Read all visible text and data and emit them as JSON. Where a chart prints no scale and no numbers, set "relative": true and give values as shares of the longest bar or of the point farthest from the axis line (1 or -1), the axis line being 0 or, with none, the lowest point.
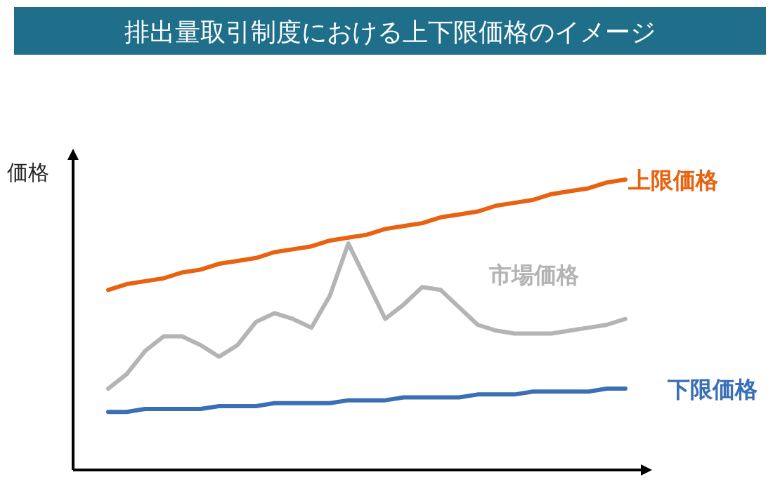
{
  "chart_data": {
    "type": "line",
    "title": "排出量取引制度における上下限価格のイメージ",
    "ylabel": "価格",
    "relative": true,
    "categories": [
      null,
      null,
      null,
      null,
      null,
      null,
      null,
      null,
      null,
      null,
      null,
      null,
      null,
      null,
      null,
      null,
      null,
      null,
      null,
      null,
      null,
      null,
      null,
      null,
      null,
      null,
      null,
      null,
      null
    ],
    "series": [
      {
        "name": "上限価格",
        "color": "#e8620f",
        "values": [
          0.62,
          0.64,
          0.65,
          0.66,
          0.68,
          0.69,
          0.71,
          0.72,
          0.73,
          0.75,
          0.76,
          0.77,
          0.79,
          0.8,
          0.81,
          0.83,
          0.84,
          0.85,
          0.87,
          0.88,
          0.89,
          0.91,
          0.92,
          0.93,
          0.95,
          0.96,
          0.97,
          0.99,
          1.0
        ]
      },
      {
        "name": "市場価格",
        "color": "#b4b4b4",
        "values": [
          0.28,
          0.33,
          0.41,
          0.46,
          0.46,
          0.43,
          0.39,
          0.43,
          0.51,
          0.54,
          0.52,
          0.49,
          0.6,
          0.78,
          0.65,
          0.52,
          0.57,
          0.63,
          0.62,
          0.56,
          0.5,
          0.48,
          0.47,
          0.47,
          0.47,
          0.48,
          0.49,
          0.5,
          0.52
        ]
      },
      {
        "name": "下限価格",
        "color": "#3a6fb5",
        "values": [
          0.2,
          0.2,
          0.21,
          0.21,
          0.21,
          0.21,
          0.22,
          0.22,
          0.22,
          0.23,
          0.23,
          0.23,
          0.23,
          0.24,
          0.24,
          0.24,
          0.25,
          0.25,
          0.25,
          0.25,
          0.26,
          0.26,
          0.26,
          0.27,
          0.27,
          0.27,
          0.27,
          0.28,
          0.28
        ]
      }
    ]
  }
}
